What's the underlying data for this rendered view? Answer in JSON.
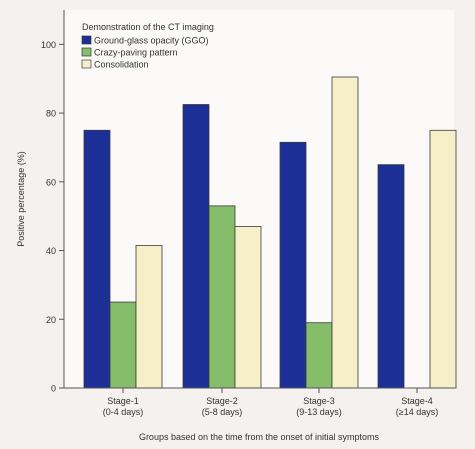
{
  "colors": {
    "background": "#f4f1ee",
    "plot_background": "#fbfaf8",
    "axis": "#555555"
  },
  "chart_data": {
    "type": "bar",
    "title": "",
    "xlabel": "Groups based on the time from the onset of initial symptoms",
    "ylabel": "Positive percentage (%)",
    "ylim": [
      0,
      110
    ],
    "yticks": [
      0,
      20,
      40,
      60,
      80,
      100
    ],
    "grid": false,
    "legend": {
      "title": "Demonstration of the CT imaging",
      "placement": "top-left"
    },
    "categories": [
      [
        "Stage-1",
        "(0-4 days)"
      ],
      [
        "Stage-2",
        "(5-8 days)"
      ],
      [
        "Stage-3",
        "(9-13 days)"
      ],
      [
        "Stage-4",
        "(≥14 days)"
      ]
    ],
    "series": [
      {
        "name": "Ground-glass opacity (GGO)",
        "color": "#1c2f96",
        "values": [
          75,
          82.5,
          71.5,
          65
        ]
      },
      {
        "name": "Crazy-paving pattern",
        "color": "#86bd6a",
        "values": [
          25,
          53,
          19,
          0
        ]
      },
      {
        "name": "Consolidation",
        "color": "#f7efc7",
        "values": [
          41.5,
          47,
          90.5,
          75
        ]
      }
    ]
  }
}
